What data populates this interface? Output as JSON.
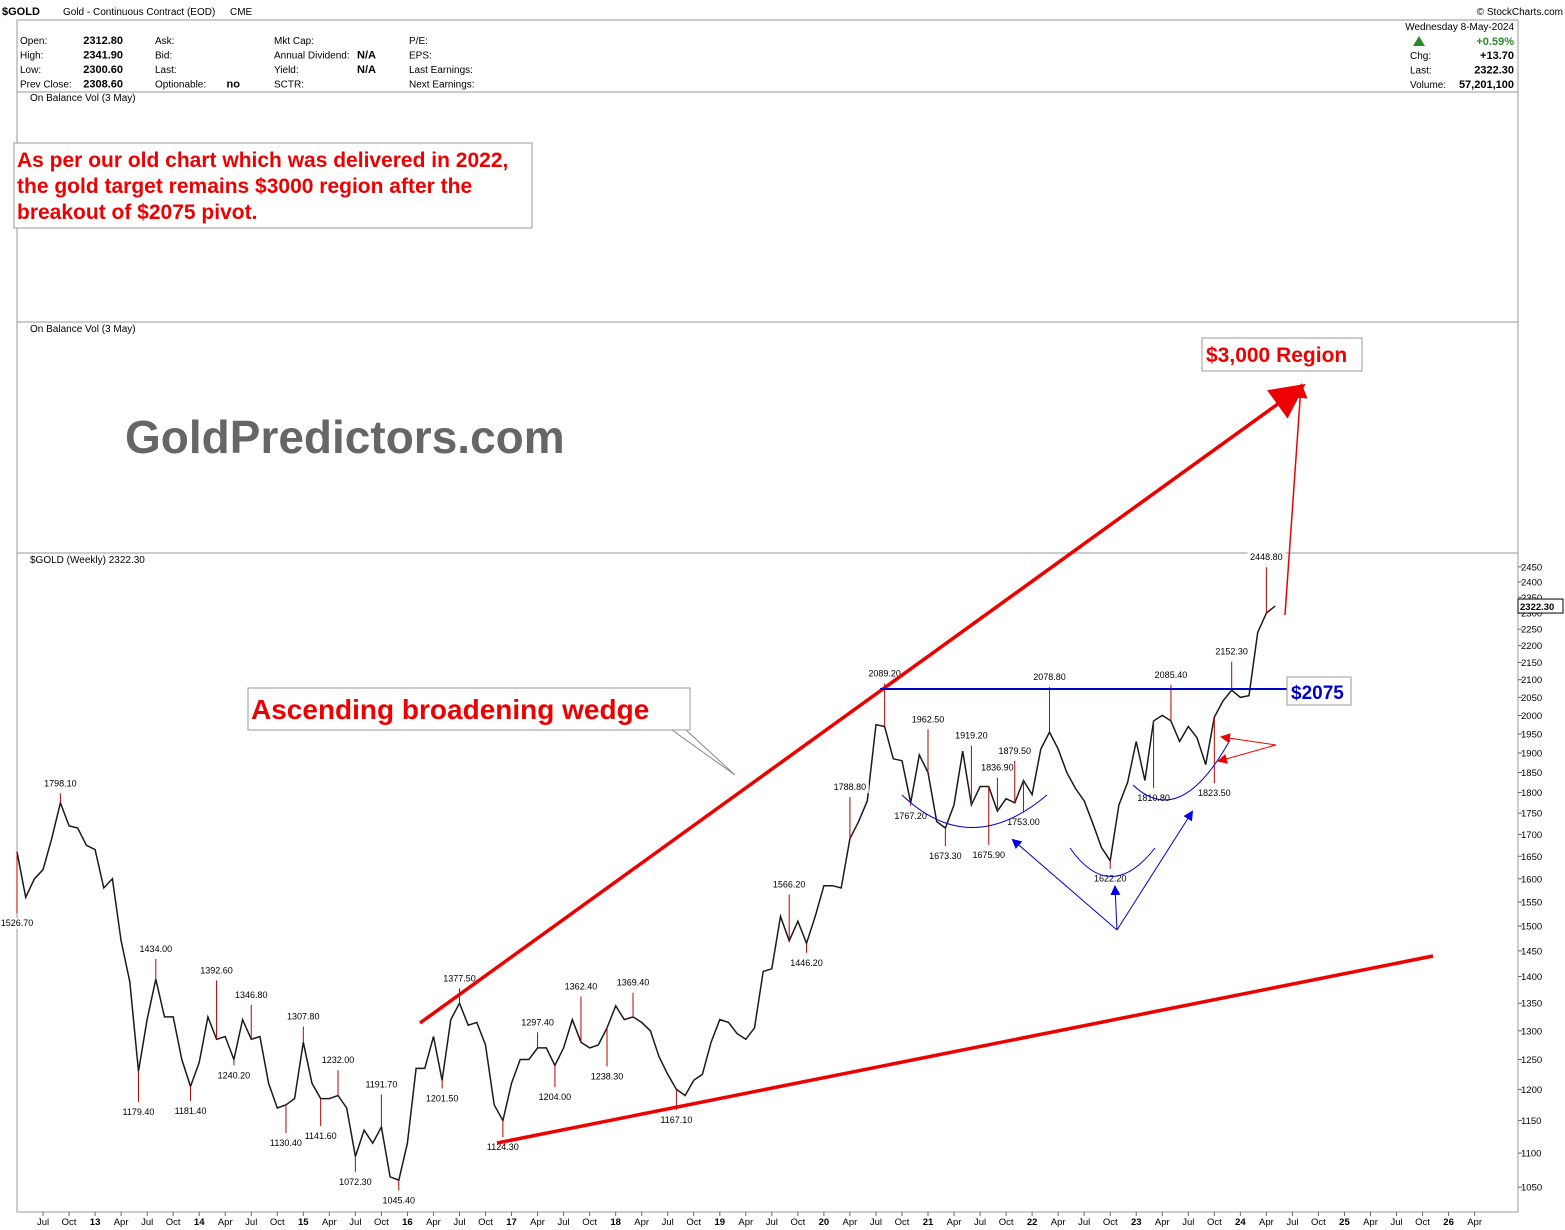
{
  "header": {
    "symbol": "$GOLD",
    "name": "Gold - Continuous Contract (EOD)",
    "exchange": "CME",
    "date": "Wednesday  8-May-2024",
    "copyright": "© StockCharts.com",
    "change_pct": "+0.59%",
    "columns": [
      [
        {
          "label": "Open:",
          "value": "2312.80"
        },
        {
          "label": "High:",
          "value": "2341.90"
        },
        {
          "label": "Low:",
          "value": "2300.60"
        },
        {
          "label": "Prev Close:",
          "value": "2308.60"
        }
      ],
      [
        {
          "label": "Ask:"
        },
        {
          "label": "Bid:"
        },
        {
          "label": "Last:"
        },
        {
          "label": "Optionable:",
          "value": "no"
        }
      ],
      [
        {
          "label": "Mkt Cap:"
        },
        {
          "label": "Annual Dividend:",
          "value": "N/A"
        },
        {
          "label": "Yield:",
          "value": "N/A"
        },
        {
          "label": "SCTR:"
        }
      ],
      [
        {
          "label": "P/E:"
        },
        {
          "label": "EPS:"
        },
        {
          "label": "Last Earnings:"
        },
        {
          "label": "Next Earnings:"
        }
      ]
    ],
    "right": [
      {
        "label": "Chg:",
        "value": "+13.70"
      },
      {
        "label": "Last:",
        "value": "2322.30"
      },
      {
        "label": "Volume:",
        "value": "57,201,100"
      }
    ]
  },
  "panels": [
    "On Balance Vol (3 May)",
    "On Balance Vol (3 May)",
    "$GOLD (Weekly) 2322.30"
  ],
  "notes": {
    "old_chart": [
      "As per our old chart which was delivered in 2022,",
      "the gold target remains $3000 region after the",
      "breakout of $2075 pivot."
    ],
    "brand": "GoldPredictors.com",
    "target": "$3,000 Region",
    "wedge": "Ascending broadening wedge",
    "pivot": "$2075"
  },
  "chart_data": {
    "type": "line",
    "color": "#1a1a1a",
    "log_scale": true,
    "xlim": [
      "2012-04",
      "2026-09"
    ],
    "ylim": [
      1015,
      2490
    ],
    "last_price": {
      "value": 2322.3,
      "label": "2322.30"
    },
    "yticks": [
      1050,
      1100,
      1150,
      1200,
      1250,
      1300,
      1350,
      1400,
      1450,
      1500,
      1550,
      1600,
      1650,
      1700,
      1750,
      1800,
      1850,
      1900,
      1950,
      2000,
      2050,
      2100,
      2150,
      2200,
      2250,
      2300,
      2350,
      2400,
      2450
    ],
    "xticks": [
      {
        "value": "2012-07",
        "label": "Jul"
      },
      {
        "value": "2012-10",
        "label": "Oct"
      },
      {
        "value": "2013-01",
        "label": "13"
      },
      {
        "value": "2013-04",
        "label": "Apr"
      },
      {
        "value": "2013-07",
        "label": "Jul"
      },
      {
        "value": "2013-10",
        "label": "Oct"
      },
      {
        "value": "2014-01",
        "label": "14"
      },
      {
        "value": "2014-04",
        "label": "Apr"
      },
      {
        "value": "2014-07",
        "label": "Jul"
      },
      {
        "value": "2014-10",
        "label": "Oct"
      },
      {
        "value": "2015-01",
        "label": "15"
      },
      {
        "value": "2015-04",
        "label": "Apr"
      },
      {
        "value": "2015-07",
        "label": "Jul"
      },
      {
        "value": "2015-10",
        "label": "Oct"
      },
      {
        "value": "2016-01",
        "label": "16"
      },
      {
        "value": "2016-04",
        "label": "Apr"
      },
      {
        "value": "2016-07",
        "label": "Jul"
      },
      {
        "value": "2016-10",
        "label": "Oct"
      },
      {
        "value": "2017-01",
        "label": "17"
      },
      {
        "value": "2017-04",
        "label": "Apr"
      },
      {
        "value": "2017-07",
        "label": "Jul"
      },
      {
        "value": "2017-10",
        "label": "Oct"
      },
      {
        "value": "2018-01",
        "label": "18"
      },
      {
        "value": "2018-04",
        "label": "Apr"
      },
      {
        "value": "2018-07",
        "label": "Jul"
      },
      {
        "value": "2018-10",
        "label": "Oct"
      },
      {
        "value": "2019-01",
        "label": "19"
      },
      {
        "value": "2019-04",
        "label": "Apr"
      },
      {
        "value": "2019-07",
        "label": "Jul"
      },
      {
        "value": "2019-10",
        "label": "Oct"
      },
      {
        "value": "2020-01",
        "label": "20"
      },
      {
        "value": "2020-04",
        "label": "Apr"
      },
      {
        "value": "2020-07",
        "label": "Jul"
      },
      {
        "value": "2020-10",
        "label": "Oct"
      },
      {
        "value": "2021-01",
        "label": "21"
      },
      {
        "value": "2021-04",
        "label": "Apr"
      },
      {
        "value": "2021-07",
        "label": "Jul"
      },
      {
        "value": "2021-10",
        "label": "Oct"
      },
      {
        "value": "2022-01",
        "label": "22"
      },
      {
        "value": "2022-04",
        "label": "Apr"
      },
      {
        "value": "2022-07",
        "label": "Jul"
      },
      {
        "value": "2022-10",
        "label": "Oct"
      },
      {
        "value": "2023-01",
        "label": "23"
      },
      {
        "value": "2023-04",
        "label": "Apr"
      },
      {
        "value": "2023-07",
        "label": "Jul"
      },
      {
        "value": "2023-10",
        "label": "Oct"
      },
      {
        "value": "2024-01",
        "label": "24"
      },
      {
        "value": "2024-04",
        "label": "Apr"
      },
      {
        "value": "2024-07",
        "label": "Jul"
      },
      {
        "value": "2024-10",
        "label": "Oct"
      },
      {
        "value": "2025-01",
        "label": "25"
      },
      {
        "value": "2025-04",
        "label": "Apr"
      },
      {
        "value": "2025-07",
        "label": "Jul"
      },
      {
        "value": "2025-10",
        "label": "Oct"
      },
      {
        "value": "2026-01",
        "label": "26"
      },
      {
        "value": "2026-04",
        "label": "Apr"
      }
    ],
    "x": [
      "2012-04",
      "2012-05",
      "2012-06",
      "2012-07",
      "2012-08",
      "2012-09",
      "2012-10",
      "2012-11",
      "2012-12",
      "2013-01",
      "2013-02",
      "2013-03",
      "2013-04",
      "2013-05",
      "2013-06",
      "2013-07",
      "2013-08",
      "2013-09",
      "2013-10",
      "2013-11",
      "2013-12",
      "2014-01",
      "2014-02",
      "2014-03",
      "2014-04",
      "2014-05",
      "2014-06",
      "2014-07",
      "2014-08",
      "2014-09",
      "2014-10",
      "2014-11",
      "2014-12",
      "2015-01",
      "2015-02",
      "2015-03",
      "2015-04",
      "2015-05",
      "2015-06",
      "2015-07",
      "2015-08",
      "2015-09",
      "2015-10",
      "2015-11",
      "2015-12",
      "2016-01",
      "2016-02",
      "2016-03",
      "2016-04",
      "2016-05",
      "2016-06",
      "2016-07",
      "2016-08",
      "2016-09",
      "2016-10",
      "2016-11",
      "2016-12",
      "2017-01",
      "2017-02",
      "2017-03",
      "2017-04",
      "2017-05",
      "2017-06",
      "2017-07",
      "2017-08",
      "2017-09",
      "2017-10",
      "2017-11",
      "2017-12",
      "2018-01",
      "2018-02",
      "2018-03",
      "2018-04",
      "2018-05",
      "2018-06",
      "2018-07",
      "2018-08",
      "2018-09",
      "2018-10",
      "2018-11",
      "2018-12",
      "2019-01",
      "2019-02",
      "2019-03",
      "2019-04",
      "2019-05",
      "2019-06",
      "2019-07",
      "2019-08",
      "2019-09",
      "2019-10",
      "2019-11",
      "2019-12",
      "2020-01",
      "2020-02",
      "2020-03",
      "2020-04",
      "2020-05",
      "2020-06",
      "2020-07",
      "2020-08",
      "2020-09",
      "2020-10",
      "2020-11",
      "2020-12",
      "2021-01",
      "2021-02",
      "2021-03",
      "2021-04",
      "2021-05",
      "2021-06",
      "2021-07",
      "2021-08",
      "2021-09",
      "2021-10",
      "2021-11",
      "2021-12",
      "2022-01",
      "2022-02",
      "2022-03",
      "2022-04",
      "2022-05",
      "2022-06",
      "2022-07",
      "2022-08",
      "2022-09",
      "2022-10",
      "2022-11",
      "2022-12",
      "2023-01",
      "2023-02",
      "2023-03",
      "2023-04",
      "2023-05",
      "2023-06",
      "2023-07",
      "2023-08",
      "2023-09",
      "2023-10",
      "2023-11",
      "2023-12",
      "2024-01",
      "2024-02",
      "2024-03",
      "2024-04",
      "2024-05"
    ],
    "values": [
      1660,
      1560,
      1600,
      1620,
      1690,
      1775,
      1720,
      1715,
      1675,
      1665,
      1580,
      1600,
      1470,
      1390,
      1230,
      1320,
      1395,
      1325,
      1325,
      1250,
      1205,
      1245,
      1325,
      1285,
      1290,
      1250,
      1320,
      1285,
      1290,
      1210,
      1170,
      1175,
      1185,
      1280,
      1210,
      1185,
      1185,
      1190,
      1170,
      1095,
      1135,
      1115,
      1140,
      1065,
      1060,
      1115,
      1235,
      1235,
      1290,
      1215,
      1320,
      1350,
      1310,
      1315,
      1275,
      1175,
      1150,
      1210,
      1250,
      1250,
      1270,
      1270,
      1240,
      1270,
      1320,
      1280,
      1270,
      1275,
      1305,
      1345,
      1320,
      1325,
      1315,
      1300,
      1255,
      1225,
      1200,
      1190,
      1215,
      1225,
      1280,
      1320,
      1315,
      1295,
      1285,
      1305,
      1410,
      1415,
      1520,
      1470,
      1510,
      1465,
      1520,
      1585,
      1585,
      1580,
      1690,
      1730,
      1780,
      1975,
      1970,
      1885,
      1880,
      1775,
      1895,
      1850,
      1730,
      1715,
      1770,
      1905,
      1770,
      1815,
      1815,
      1755,
      1785,
      1775,
      1830,
      1795,
      1910,
      1955,
      1910,
      1850,
      1810,
      1780,
      1725,
      1670,
      1640,
      1770,
      1825,
      1930,
      1830,
      1985,
      2000,
      1985,
      1930,
      1970,
      1940,
      1870,
      1995,
      2040,
      2070,
      2050,
      2055,
      2240,
      2300,
      2322
    ],
    "annotations": [
      {
        "x": "2012-04",
        "value": 1526.7,
        "label": "1526.70"
      },
      {
        "x": "2012-09",
        "value": 1798.1,
        "label": "1798.10"
      },
      {
        "x": "2013-06",
        "value": 1179.4,
        "label": "1179.40"
      },
      {
        "x": "2013-08",
        "value": 1434,
        "label": "1434.00"
      },
      {
        "x": "2013-12",
        "value": 1181.4,
        "label": "1181.40"
      },
      {
        "x": "2014-03",
        "value": 1392.6,
        "label": "1392.60"
      },
      {
        "x": "2014-05",
        "value": 1240.2,
        "label": "1240.20"
      },
      {
        "x": "2014-07",
        "value": 1346.8,
        "label": "1346.80"
      },
      {
        "x": "2014-11",
        "value": 1130.4,
        "label": "1130.40"
      },
      {
        "x": "2015-01",
        "value": 1307.8,
        "label": "1307.80"
      },
      {
        "x": "2015-03",
        "value": 1141.6,
        "label": "1141.60"
      },
      {
        "x": "2015-05",
        "value": 1232,
        "label": "1232.00"
      },
      {
        "x": "2015-07",
        "value": 1072.3,
        "label": "1072.30"
      },
      {
        "x": "2015-10",
        "value": 1191.7,
        "label": "1191.70"
      },
      {
        "x": "2015-12",
        "value": 1045.4,
        "label": "1045.40"
      },
      {
        "x": "2016-05",
        "value": 1201.5,
        "label": "1201.50"
      },
      {
        "x": "2016-07",
        "value": 1377.5,
        "label": "1377.50"
      },
      {
        "x": "2016-12",
        "value": 1124.3,
        "label": "1124.30"
      },
      {
        "x": "2017-04",
        "value": 1297.4,
        "label": "1297.40"
      },
      {
        "x": "2017-06",
        "value": 1204,
        "label": "1204.00"
      },
      {
        "x": "2017-09",
        "value": 1362.4,
        "label": "1362.40"
      },
      {
        "x": "2017-12",
        "value": 1238.3,
        "label": "1238.30"
      },
      {
        "x": "2018-03",
        "value": 1369.4,
        "label": "1369.40"
      },
      {
        "x": "2018-08",
        "value": 1167.1,
        "label": "1167.10"
      },
      {
        "x": "2019-09",
        "value": 1566.2,
        "label": "1566.20"
      },
      {
        "x": "2019-11",
        "value": 1446.2,
        "label": "1446.20"
      },
      {
        "x": "2020-04",
        "value": 1788.8,
        "label": "1788.80"
      },
      {
        "x": "2020-08",
        "value": 2089.2,
        "label": "2089.20"
      },
      {
        "x": "2020-11",
        "value": 1767.2,
        "label": "1767.20"
      },
      {
        "x": "2021-01",
        "value": 1962.5,
        "label": "1962.50"
      },
      {
        "x": "2021-03",
        "value": 1673.3,
        "label": "1673.30"
      },
      {
        "x": "2021-06",
        "value": 1919.2,
        "label": "1919.20"
      },
      {
        "x": "2021-08",
        "value": 1675.9,
        "label": "1675.90"
      },
      {
        "x": "2021-09",
        "value": 1836.9,
        "label": "1836.90"
      },
      {
        "x": "2021-11",
        "value": 1879.5,
        "label": "1879.50"
      },
      {
        "x": "2021-12",
        "value": 1753,
        "label": "1753.00"
      },
      {
        "x": "2022-03",
        "value": 2078.8,
        "label": "2078.80"
      },
      {
        "x": "2022-10",
        "value": 1622.2,
        "label": "1622.20"
      },
      {
        "x": "2023-03",
        "value": 1810.8,
        "label": "1810.80"
      },
      {
        "x": "2023-05",
        "value": 2085.4,
        "label": "2085.40"
      },
      {
        "x": "2023-10",
        "value": 1823.5,
        "label": "1823.50"
      },
      {
        "x": "2023-12",
        "value": 2152.3,
        "label": "2152.30"
      },
      {
        "x": "2024-04",
        "value": 2448.8,
        "label": "2448.80"
      }
    ]
  }
}
